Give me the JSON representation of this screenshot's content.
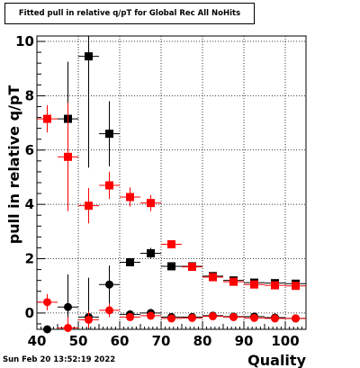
{
  "chart_data": {
    "type": "scatter",
    "title": "Fitted pull in relative q/pT for Global Rec All NoHits",
    "xlabel": "Quality",
    "ylabel": "pull in relative q/pT",
    "xlim": [
      40,
      105
    ],
    "ylim": [
      -0.6,
      10.2
    ],
    "grid": true,
    "x_ticks": [
      40,
      50,
      60,
      70,
      80,
      90,
      100
    ],
    "y_ticks": [
      0,
      2,
      4,
      6,
      8,
      10
    ],
    "series": [
      {
        "marker": "square",
        "color": "#000000",
        "points": [
          {
            "x": 47.5,
            "y": 7.15,
            "err": 2.1
          },
          {
            "x": 52.5,
            "y": 9.45,
            "err": 4.1
          },
          {
            "x": 57.5,
            "y": 6.6,
            "err": 1.2
          },
          {
            "x": 62.5,
            "y": 1.87,
            "err": 0.15
          },
          {
            "x": 67.5,
            "y": 2.2,
            "err": 0.2
          },
          {
            "x": 72.5,
            "y": 1.72,
            "err": 0.08
          },
          {
            "x": 77.5,
            "y": 1.72,
            "err": 0.07
          },
          {
            "x": 82.5,
            "y": 1.36,
            "err": 0.07
          },
          {
            "x": 87.5,
            "y": 1.2,
            "err": 0.06
          },
          {
            "x": 92.5,
            "y": 1.12,
            "err": 0.06
          },
          {
            "x": 97.5,
            "y": 1.1,
            "err": 0.06
          },
          {
            "x": 102.5,
            "y": 1.08,
            "err": 0.06
          }
        ]
      },
      {
        "marker": "square",
        "color": "#ff0000",
        "points": [
          {
            "x": 42.5,
            "y": 7.15,
            "err": 0.5
          },
          {
            "x": 47.5,
            "y": 5.75,
            "err": 2.0
          },
          {
            "x": 52.5,
            "y": 3.95,
            "err": 0.65
          },
          {
            "x": 57.5,
            "y": 4.7,
            "err": 0.5
          },
          {
            "x": 62.5,
            "y": 4.27,
            "err": 0.35
          },
          {
            "x": 67.5,
            "y": 4.05,
            "err": 0.3
          },
          {
            "x": 72.5,
            "y": 2.53,
            "err": 0.15
          },
          {
            "x": 77.5,
            "y": 1.7,
            "err": 0.08
          },
          {
            "x": 82.5,
            "y": 1.32,
            "err": 0.07
          },
          {
            "x": 87.5,
            "y": 1.15,
            "err": 0.06
          },
          {
            "x": 92.5,
            "y": 1.05,
            "err": 0.06
          },
          {
            "x": 97.5,
            "y": 1.02,
            "err": 0.06
          },
          {
            "x": 102.5,
            "y": 1.0,
            "err": 0.06
          }
        ]
      },
      {
        "marker": "circle",
        "color": "#000000",
        "points": [
          {
            "x": 42.5,
            "y": -0.6,
            "err": 0.1
          },
          {
            "x": 47.5,
            "y": 0.22,
            "err": 1.2
          },
          {
            "x": 52.5,
            "y": -0.15,
            "err": 1.45
          },
          {
            "x": 57.5,
            "y": 1.05,
            "err": 0.7
          },
          {
            "x": 62.5,
            "y": -0.05,
            "err": 0.15
          },
          {
            "x": 67.5,
            "y": 0.0,
            "err": 0.15
          },
          {
            "x": 72.5,
            "y": -0.15,
            "err": 0.07
          },
          {
            "x": 77.5,
            "y": -0.15,
            "err": 0.05
          },
          {
            "x": 82.5,
            "y": -0.1,
            "err": 0.05
          },
          {
            "x": 87.5,
            "y": -0.13,
            "err": 0.04
          },
          {
            "x": 92.5,
            "y": -0.13,
            "err": 0.04
          },
          {
            "x": 97.5,
            "y": -0.17,
            "err": 0.04
          },
          {
            "x": 102.5,
            "y": -0.2,
            "err": 0.04
          }
        ]
      },
      {
        "marker": "circle",
        "color": "#ff0000",
        "points": [
          {
            "x": 42.5,
            "y": 0.4,
            "err": 0.3
          },
          {
            "x": 47.5,
            "y": -0.55,
            "err": 0.4
          },
          {
            "x": 52.5,
            "y": -0.25,
            "err": 0.3
          },
          {
            "x": 57.5,
            "y": 0.1,
            "err": 0.25
          },
          {
            "x": 62.5,
            "y": -0.15,
            "err": 0.12
          },
          {
            "x": 67.5,
            "y": -0.1,
            "err": 0.1
          },
          {
            "x": 72.5,
            "y": -0.2,
            "err": 0.06
          },
          {
            "x": 77.5,
            "y": -0.18,
            "err": 0.05
          },
          {
            "x": 82.5,
            "y": -0.12,
            "err": 0.04
          },
          {
            "x": 87.5,
            "y": -0.15,
            "err": 0.04
          },
          {
            "x": 92.5,
            "y": -0.18,
            "err": 0.04
          },
          {
            "x": 97.5,
            "y": -0.2,
            "err": 0.04
          },
          {
            "x": 102.5,
            "y": -0.2,
            "err": 0.04
          }
        ]
      }
    ]
  },
  "footer": {
    "datestamp": "Sun Feb 20 13:52:19 2022"
  }
}
